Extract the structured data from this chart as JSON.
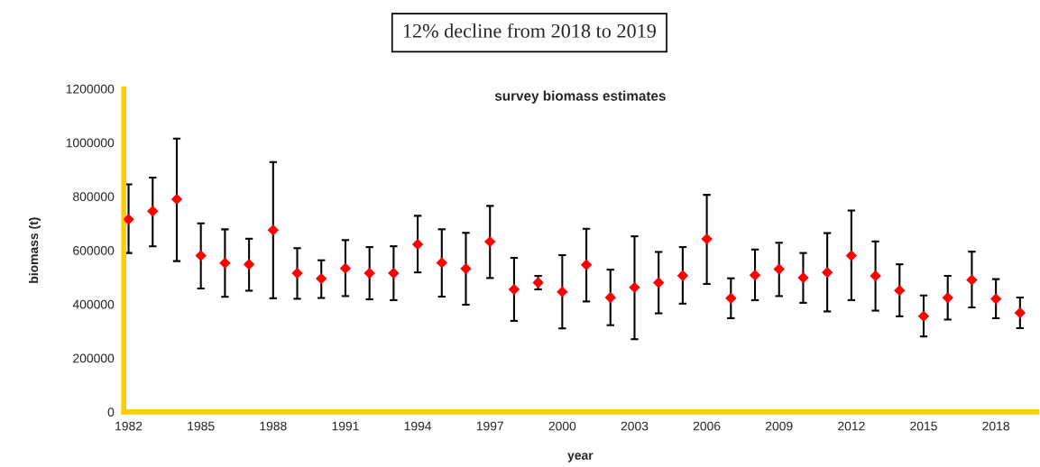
{
  "chart_data": {
    "type": "scatter",
    "title": "survey biomass estimates",
    "xlabel": "year",
    "ylabel": "biomass (t)",
    "annotations": [
      "12% decline from 2018 to 2019"
    ],
    "x": [
      1982,
      1983,
      1984,
      1985,
      1986,
      1987,
      1988,
      1989,
      1990,
      1991,
      1992,
      1993,
      1994,
      1995,
      1996,
      1997,
      1998,
      1999,
      2000,
      2001,
      2002,
      2003,
      2004,
      2005,
      2006,
      2007,
      2008,
      2009,
      2010,
      2011,
      2012,
      2013,
      2014,
      2015,
      2016,
      2017,
      2018,
      2019
    ],
    "series": [
      {
        "color": "#ff0000",
        "values": [
          715000,
          745000,
          790000,
          580000,
          553000,
          548000,
          675000,
          515000,
          495000,
          533000,
          515000,
          515000,
          622000,
          554000,
          532000,
          632000,
          455000,
          480000,
          446000,
          546000,
          425000,
          462000,
          480000,
          506000,
          642000,
          422000,
          508000,
          530000,
          498000,
          518000,
          580000,
          505000,
          451000,
          355000,
          424000,
          490000,
          420000,
          368000
        ],
        "errors": [
          [
            590000,
            845000
          ],
          [
            615000,
            870000
          ],
          [
            560000,
            1015000
          ],
          [
            458000,
            700000
          ],
          [
            427000,
            678000
          ],
          [
            450000,
            643000
          ],
          [
            422000,
            928000
          ],
          [
            420000,
            608000
          ],
          [
            423000,
            563000
          ],
          [
            430000,
            638000
          ],
          [
            418000,
            612000
          ],
          [
            415000,
            615000
          ],
          [
            518000,
            728000
          ],
          [
            428000,
            678000
          ],
          [
            398000,
            665000
          ],
          [
            497000,
            765000
          ],
          [
            338000,
            572000
          ],
          [
            455000,
            505000
          ],
          [
            310000,
            582000
          ],
          [
            410000,
            680000
          ],
          [
            322000,
            528000
          ],
          [
            270000,
            652000
          ],
          [
            366000,
            594000
          ],
          [
            402000,
            612000
          ],
          [
            475000,
            806000
          ],
          [
            348000,
            496000
          ],
          [
            415000,
            603000
          ],
          [
            430000,
            628000
          ],
          [
            405000,
            590000
          ],
          [
            373000,
            664000
          ],
          [
            415000,
            748000
          ],
          [
            376000,
            633000
          ],
          [
            355000,
            548000
          ],
          [
            280000,
            432000
          ],
          [
            343000,
            505000
          ],
          [
            388000,
            595000
          ],
          [
            348000,
            493000
          ],
          [
            311000,
            425000
          ]
        ]
      }
    ],
    "marker": "diamond",
    "xlim": [
      1981.8,
      2019.7
    ],
    "xticks": [
      1982,
      1985,
      1988,
      1991,
      1994,
      1997,
      2000,
      2003,
      2006,
      2009,
      2012,
      2015,
      2018
    ],
    "ylim": [
      0,
      1200000
    ],
    "yticks": [
      0,
      200000,
      400000,
      600000,
      800000,
      1000000,
      1200000
    ],
    "grid": false,
    "legend": false
  }
}
